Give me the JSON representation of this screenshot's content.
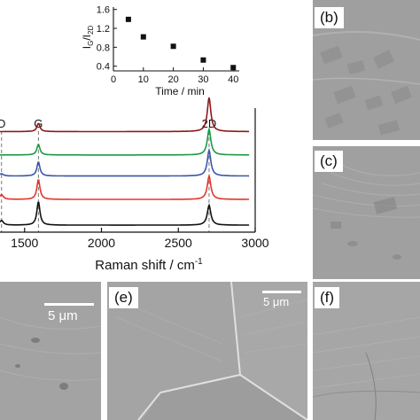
{
  "chart_data": [
    {
      "type": "line",
      "title": "",
      "xlabel": "Raman shift / cm",
      "xlabel_superscript": "-1",
      "ylabel": "",
      "xlim": [
        1340,
        3000
      ],
      "x_ticks": [
        1500,
        2000,
        2500,
        3000
      ],
      "x_tick_labels": [
        "1500",
        "2000",
        "2500",
        "3000"
      ],
      "peak_labels": [
        {
          "text": "D",
          "x": 1350
        },
        {
          "text": "G",
          "x": 1590
        },
        {
          "text": "2D",
          "x": 2700
        }
      ],
      "series": [
        {
          "color": "#8b1a1a",
          "offset": 0.86,
          "peaks": {
            "D": 0.0,
            "G": 0.07,
            "2D": 0.29
          }
        },
        {
          "color": "#1d9a46",
          "offset": 0.66,
          "peaks": {
            "D": 0.0,
            "G": 0.09,
            "2D": 0.22
          }
        },
        {
          "color": "#3a56a8",
          "offset": 0.48,
          "peaks": {
            "D": 0.02,
            "G": 0.12,
            "2D": 0.22
          }
        },
        {
          "color": "#e2372b",
          "offset": 0.28,
          "peaks": {
            "D": 0.04,
            "G": 0.17,
            "2D": 0.2
          }
        },
        {
          "color": "#111111",
          "offset": 0.06,
          "peaks": {
            "D": 0.04,
            "G": 0.2,
            "2D": 0.17
          }
        }
      ]
    },
    {
      "type": "scatter",
      "title": "",
      "xlabel": "Time / min",
      "ylabel": "I",
      "ylabel_sub1": "G",
      "ylabel_mid": "/I",
      "ylabel_sub2": "2D",
      "xlim": [
        0,
        42
      ],
      "ylim": [
        0.3,
        1.65
      ],
      "x_ticks": [
        0,
        10,
        20,
        30,
        40
      ],
      "x_tick_labels": [
        "0",
        "10",
        "20",
        "30",
        "40"
      ],
      "y_ticks": [
        0.4,
        0.8,
        1.2,
        1.6
      ],
      "y_tick_labels": [
        "0.4",
        "0.8",
        "1.2",
        "1.6"
      ],
      "x": [
        5,
        10,
        20,
        30,
        40
      ],
      "y": [
        1.39,
        1.02,
        0.82,
        0.53,
        0.37
      ]
    }
  ],
  "panels": {
    "b": {
      "label": "(b)"
    },
    "c": {
      "label": "(c)"
    },
    "d": {
      "scalebar": "5 μm"
    },
    "e": {
      "label": "(e)",
      "scalebar": "5 μm"
    },
    "f": {
      "label": "(f)"
    }
  },
  "colors": {
    "sem_base": "#9a9a9a",
    "sem_dark": "#7d7d7d",
    "sem_light": "#b4b4b4"
  }
}
